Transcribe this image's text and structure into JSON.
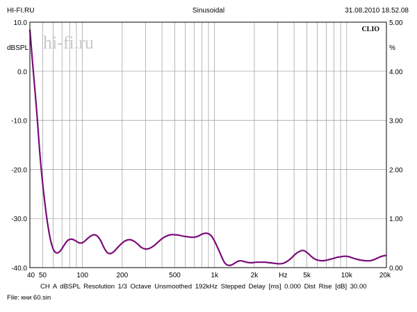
{
  "header": {
    "left": "HI-FI.RU",
    "center": "Sinusoidal",
    "right": "31.08.2010 18.52.08"
  },
  "watermark": "hi-fi.ru",
  "brand": "CLIO",
  "settings_line": "CH A   dBSPL   Resolution 1/3 Octave   Unsmoothed   192kHz   Stepped     Delay [ms] 0.000    Dist Rise [dB] 30.00",
  "file_line": "File: кни 60.sin",
  "colors": {
    "curve": "#7a0a78",
    "grid": "#9a9a9a",
    "frame": "#000000",
    "watermark": "#c8c8c8"
  },
  "chart_data": {
    "type": "line",
    "x_scale": "log",
    "xlim": [
      40,
      20000
    ],
    "ylim": [
      -40,
      10
    ],
    "y2lim": [
      0,
      5
    ],
    "grid": true,
    "ylabel": "dBSPL",
    "y2label": "%",
    "xlabel": "Hz",
    "x_ticks": [
      {
        "value": 40,
        "label": "40"
      },
      {
        "value": 50,
        "label": "50"
      },
      {
        "value": 100,
        "label": "100"
      },
      {
        "value": 200,
        "label": "200"
      },
      {
        "value": 500,
        "label": "500"
      },
      {
        "value": 1000,
        "label": "1k"
      },
      {
        "value": 2000,
        "label": "2k"
      },
      {
        "value": 5000,
        "label": "5k"
      },
      {
        "value": 10000,
        "label": "10k"
      },
      {
        "value": 20000,
        "label": "20k"
      }
    ],
    "y_ticks": [
      {
        "value": 10,
        "label": "10.0"
      },
      {
        "value": 0,
        "label": "0.0"
      },
      {
        "value": -10,
        "label": "-10.0"
      },
      {
        "value": -20,
        "label": "-20.0"
      },
      {
        "value": -30,
        "label": "-30.0"
      },
      {
        "value": -40,
        "label": "-40.0"
      }
    ],
    "y2_ticks": [
      {
        "value": 5,
        "label": "5.00"
      },
      {
        "value": 4,
        "label": "4.00"
      },
      {
        "value": 3,
        "label": "3.00"
      },
      {
        "value": 2,
        "label": "2.00"
      },
      {
        "value": 1,
        "label": "1.00"
      },
      {
        "value": 0,
        "label": "0.00"
      }
    ],
    "series": [
      {
        "x": [
          40,
          42,
          45,
          48,
          52,
          56,
          60,
          64,
          68,
          72,
          77,
          82,
          87,
          92,
          97,
          102,
          108,
          115,
          122,
          130,
          138,
          146,
          155,
          165,
          175,
          186,
          198,
          212,
          228,
          245,
          262,
          280,
          300,
          320,
          345,
          370,
          400,
          430,
          465,
          500,
          540,
          580,
          620,
          660,
          700,
          750,
          800,
          850,
          900,
          950,
          1000,
          1050,
          1100,
          1150,
          1200,
          1260,
          1330,
          1400,
          1480,
          1560,
          1650,
          1750,
          1850,
          1950,
          2050,
          2200,
          2400,
          2600,
          2800,
          3000,
          3200,
          3400,
          3600,
          3800,
          4000,
          4200,
          4400,
          4600,
          4800,
          5000,
          5200,
          5500,
          5800,
          6100,
          6500,
          7000,
          7500,
          8000,
          8500,
          9000,
          9500,
          10000,
          10500,
          11000,
          12000,
          13000,
          14000,
          15000,
          16000,
          17000,
          18000,
          19000,
          20000
        ],
        "y": [
          8.5,
          1.5,
          -8,
          -18,
          -27,
          -33,
          -36.2,
          -37.0,
          -36.6,
          -35.6,
          -34.5,
          -34.2,
          -34.4,
          -34.8,
          -35.0,
          -34.8,
          -34.2,
          -33.6,
          -33.3,
          -33.6,
          -34.6,
          -36.0,
          -37.0,
          -37.1,
          -36.6,
          -35.8,
          -35.1,
          -34.5,
          -34.3,
          -34.6,
          -35.2,
          -35.9,
          -36.2,
          -36.1,
          -35.6,
          -34.9,
          -34.1,
          -33.6,
          -33.3,
          -33.3,
          -33.4,
          -33.6,
          -33.7,
          -33.8,
          -33.8,
          -33.6,
          -33.2,
          -33.0,
          -33.1,
          -33.6,
          -34.6,
          -35.8,
          -37.0,
          -38.2,
          -39.1,
          -39.5,
          -39.5,
          -39.2,
          -38.8,
          -38.6,
          -38.7,
          -38.9,
          -39.0,
          -39.0,
          -38.9,
          -38.9,
          -38.9,
          -39.0,
          -39.1,
          -39.2,
          -39.2,
          -39.0,
          -38.6,
          -38.1,
          -37.5,
          -37.0,
          -36.7,
          -36.5,
          -36.6,
          -36.9,
          -37.3,
          -37.9,
          -38.3,
          -38.5,
          -38.6,
          -38.5,
          -38.3,
          -38.1,
          -37.9,
          -37.8,
          -37.7,
          -37.7,
          -37.8,
          -38.0,
          -38.3,
          -38.5,
          -38.6,
          -38.6,
          -38.4,
          -38.1,
          -37.8,
          -37.6,
          -37.5
        ]
      }
    ]
  }
}
